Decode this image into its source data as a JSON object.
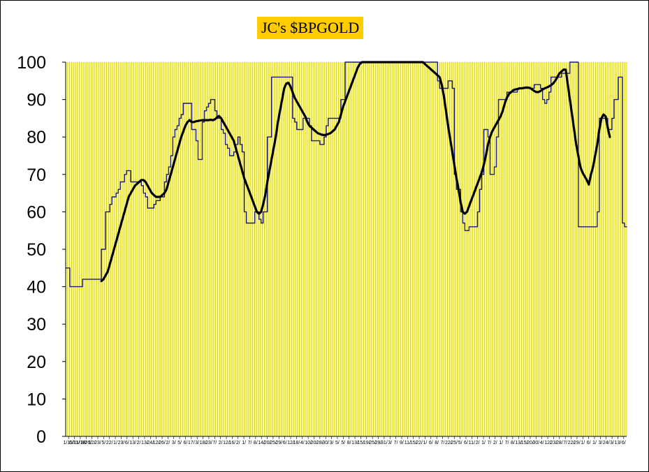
{
  "chart_data": {
    "type": "line",
    "title": "JC's $BPGOLD",
    "xlabel": "",
    "ylabel": "",
    "ylim": [
      0,
      100
    ],
    "yticks": [
      0,
      10,
      20,
      30,
      40,
      50,
      60,
      70,
      80,
      90,
      100
    ],
    "xtick_labels": [
      "1/11/",
      "6/11/",
      "11/18/",
      "3/26/",
      "12/",
      "23/",
      "5/",
      "22/",
      "1/",
      "23/",
      "6/",
      "13/",
      "2/",
      "13/",
      "24/",
      "12/",
      "26/",
      "2/",
      "3/",
      "5/",
      "6/",
      "17/",
      "3/",
      "18/",
      "23/",
      "7/",
      "2/",
      "12/",
      "16/",
      "2/",
      "1/",
      "7/",
      "8/",
      "14/",
      "20/",
      "25/",
      "29/",
      "6/",
      "12/",
      "18/",
      "4/",
      "10/",
      "20/",
      "28/",
      "30/",
      "3/",
      "5/",
      "5/",
      "8/",
      "13/",
      "15/",
      "19/",
      "25/",
      "29/",
      "31/",
      "3/",
      "7/",
      "9/",
      "11/",
      "15/",
      "22/",
      "1/",
      "6/",
      "8/",
      "7/",
      "22/",
      "25/",
      "5/",
      "6/",
      "11/",
      "2/",
      "1/",
      "7/",
      "2/",
      "1/",
      "7/",
      "8/",
      "13/",
      "15/",
      "20/",
      "30/",
      "4/",
      "12/",
      "23/",
      "28/",
      "7/",
      "22/",
      "29/",
      "1/",
      "6/",
      "1/",
      "3/",
      "24/",
      "3/",
      "13/",
      "6/"
    ],
    "grid": true,
    "plot_background": "#ffff99",
    "grid_color": "#d4c400",
    "series": [
      {
        "name": "",
        "color": "#1a1a7a",
        "style": "thin-step",
        "values": [
          45,
          45,
          40,
          40,
          40,
          40,
          40,
          40,
          42,
          42,
          42,
          42,
          42,
          42,
          42,
          42,
          42,
          50,
          50,
          60,
          60,
          62,
          64,
          64,
          65,
          66,
          68,
          68,
          70,
          71,
          71,
          68,
          68,
          68,
          68,
          68,
          67,
          65,
          64,
          61,
          61,
          61,
          62,
          63,
          63,
          64,
          64,
          68,
          70,
          72,
          75,
          80,
          82,
          83,
          85,
          86,
          89,
          89,
          89,
          89,
          82,
          82,
          79,
          74,
          74,
          84,
          87,
          88,
          89,
          90,
          90,
          87,
          85,
          85,
          82,
          81,
          78,
          77,
          75,
          75,
          76,
          78,
          80,
          78,
          76,
          60,
          57,
          57,
          57,
          57,
          60,
          60,
          58,
          57,
          60,
          60,
          80,
          80,
          96,
          96,
          96,
          96,
          96,
          96,
          96,
          96,
          96,
          96,
          85,
          84,
          82,
          82,
          82,
          85,
          85,
          85,
          83,
          79,
          79,
          79,
          79,
          78,
          78,
          80,
          83,
          85,
          85,
          85,
          85,
          85,
          85,
          90,
          90,
          100,
          100,
          100,
          100,
          100,
          100,
          100,
          100,
          100,
          100,
          100,
          100,
          100,
          100,
          100,
          100,
          100,
          100,
          100,
          100,
          100,
          100,
          100,
          100,
          100,
          100,
          100,
          100,
          100,
          100,
          100,
          100,
          100,
          100,
          100,
          100,
          100,
          100,
          100,
          100,
          100,
          100,
          100,
          100,
          95,
          93,
          93,
          93,
          93,
          95,
          95,
          93,
          70,
          66,
          66,
          60,
          57,
          55,
          55,
          56,
          56,
          56,
          56,
          60,
          66,
          70,
          82,
          82,
          80,
          70,
          70,
          72,
          80,
          90,
          90,
          90,
          90,
          92,
          92,
          92,
          92,
          92,
          93,
          93,
          93,
          93,
          93,
          93,
          93,
          93,
          94,
          94,
          94,
          93,
          90,
          89,
          90,
          92,
          96,
          96,
          96,
          96,
          96,
          97,
          97,
          97,
          97,
          100,
          100,
          100,
          100,
          56,
          56,
          56,
          56,
          56,
          56,
          56,
          56,
          56,
          60,
          85,
          85,
          85,
          85,
          82,
          82,
          85,
          90,
          90,
          96,
          96,
          57,
          56,
          56
        ]
      },
      {
        "name": "",
        "color": "#000000",
        "style": "thick-smooth",
        "values": [
          null,
          null,
          null,
          null,
          null,
          null,
          null,
          null,
          null,
          null,
          null,
          null,
          null,
          null,
          null,
          null,
          null,
          41.5,
          42,
          43,
          44,
          46,
          48,
          50,
          52,
          54,
          56,
          58,
          60,
          62,
          64,
          65,
          66,
          67,
          67.5,
          68,
          68.5,
          68.5,
          68,
          67,
          66,
          65,
          64.5,
          64,
          64,
          64,
          64.5,
          65,
          66,
          68,
          70,
          72,
          74,
          76,
          78,
          80,
          81.5,
          83,
          84,
          84.5,
          84,
          84,
          84.2,
          84.3,
          84.4,
          84.5,
          84.5,
          84.5,
          84.5,
          84.6,
          84.5,
          84.7,
          85.2,
          85.6,
          85,
          84,
          83,
          82,
          81,
          80,
          79,
          77,
          75,
          73,
          71,
          69,
          67.5,
          66,
          64.5,
          63,
          61.5,
          60,
          59.5,
          60,
          62,
          64.5,
          68,
          71,
          74,
          77,
          80,
          84,
          87,
          90,
          93,
          94.3,
          94.5,
          93.5,
          92,
          90.5,
          89.5,
          88.5,
          87.5,
          86.5,
          85.5,
          84,
          83,
          82.5,
          82,
          81.5,
          81,
          80.8,
          80.6,
          80.5,
          80.6,
          80.8,
          81,
          81.5,
          82,
          83,
          84,
          86,
          88,
          89.5,
          91,
          92.5,
          94,
          95.5,
          97,
          98.5,
          99.5,
          100,
          100,
          100,
          100,
          100,
          100,
          100,
          100,
          100,
          100,
          100,
          100,
          100,
          100,
          100,
          100,
          100,
          100,
          100,
          100,
          100,
          100,
          100,
          100,
          100,
          100,
          100,
          100,
          100,
          100,
          99.5,
          99,
          98.5,
          98,
          97.5,
          97,
          96.5,
          96,
          94,
          91,
          87,
          83,
          79.5,
          76,
          72.5,
          69,
          66,
          62.5,
          60,
          59.5,
          60,
          61.5,
          63,
          64.5,
          66,
          67.5,
          69,
          70.5,
          72.5,
          75,
          78,
          80,
          81.5,
          82.5,
          83.5,
          84.5,
          85.5,
          87,
          89,
          90.5,
          91.5,
          92,
          92.5,
          92.7,
          92.8,
          93,
          93,
          93.1,
          93.2,
          93.2,
          93.1,
          92.7,
          92.3,
          92,
          92,
          92.3,
          92.7,
          93,
          93.2,
          93.5,
          93.8,
          94.3,
          95,
          96,
          97,
          97.5,
          98,
          98,
          94,
          90,
          86,
          82,
          78,
          75,
          72,
          70.5,
          69.5,
          68.5,
          67.3,
          70,
          72,
          75,
          78,
          82,
          85,
          86,
          85.5,
          82.5,
          80
        ]
      }
    ]
  }
}
